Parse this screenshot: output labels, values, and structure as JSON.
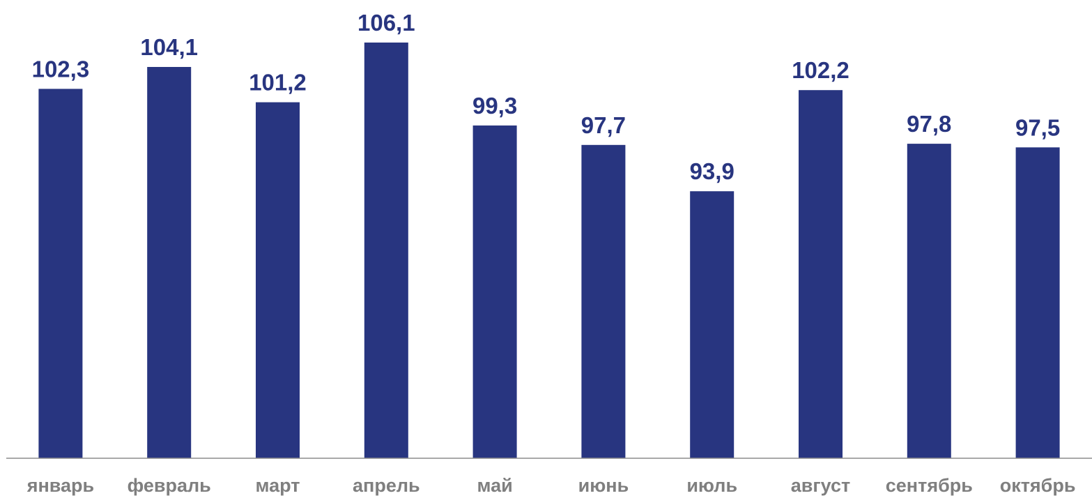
{
  "chart_data": {
    "type": "bar",
    "title": "",
    "xlabel": "",
    "ylabel": "",
    "categories": [
      "январь",
      "февраль",
      "март",
      "апрель",
      "май",
      "июнь",
      "июль",
      "август",
      "сентябрь",
      "октябрь"
    ],
    "values": [
      102.3,
      104.1,
      101.2,
      106.1,
      99.3,
      97.7,
      93.9,
      102.2,
      97.8,
      97.5
    ],
    "value_labels": [
      "102,3",
      "104,1",
      "101,2",
      "106,1",
      "99,3",
      "97,7",
      "93,9",
      "102,2",
      "97,8",
      "97,5"
    ],
    "ylim": [
      72,
      108
    ],
    "grid": false,
    "legend": "none",
    "colors": {
      "bar": "#283580",
      "value_label": "#283580",
      "tick_label": "#7f7f7f",
      "axis": "#8c8c8c"
    }
  }
}
